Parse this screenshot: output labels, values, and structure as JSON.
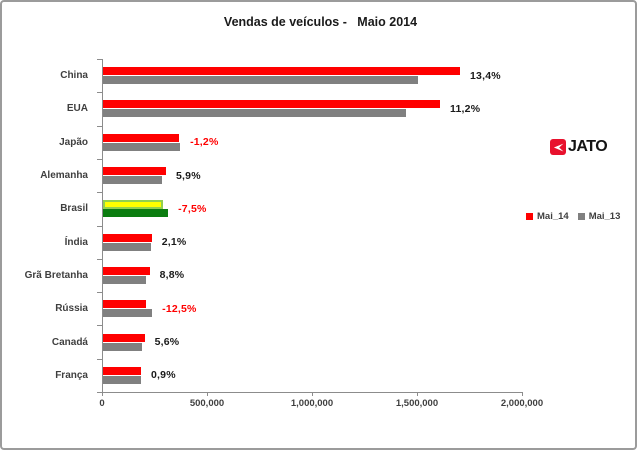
{
  "title": "Vendas de veículos -   Maio 2014",
  "chart_data": {
    "type": "bar",
    "orientation": "horizontal",
    "title": "Vendas de veículos -   Maio 2014",
    "categories": [
      "China",
      "EUA",
      "Japão",
      "Alemanha",
      "Brasil",
      "Índia",
      "Grã Bretanha",
      "Rússia",
      "Canadá",
      "França"
    ],
    "series": [
      {
        "name": "Mai_14",
        "color": "#ff0000",
        "values": [
          1700000,
          1605000,
          363000,
          300000,
          287000,
          232000,
          222000,
          205000,
          198000,
          181000
        ]
      },
      {
        "name": "Mai_13",
        "color": "#808080",
        "values": [
          1499000,
          1443000,
          367000,
          283000,
          310000,
          227000,
          204000,
          234000,
          187500,
          179400
        ]
      }
    ],
    "pct_labels": [
      "13,4%",
      "11,2%",
      "-1,2%",
      "5,9%",
      "-7,5%",
      "2,1%",
      "8,8%",
      "-12,5%",
      "5,6%",
      "0,9%"
    ],
    "pct_label_colors": [
      "#1a1a1a",
      "#1a1a1a",
      "#ff0000",
      "#1a1a1a",
      "#ff0000",
      "#1a1a1a",
      "#1a1a1a",
      "#ff0000",
      "#1a1a1a",
      "#1a1a1a"
    ],
    "highlight": {
      "category": "Brasil",
      "mai14_fill": "#ffff00",
      "mai14_border": "#92d050",
      "mai13_fill": "#0b7d10"
    },
    "xlim": [
      0,
      2000000
    ],
    "x_tick_values": [
      0,
      500000,
      1000000,
      1500000,
      2000000
    ],
    "x_tick_labels": [
      "0",
      "500,000",
      "1,000,000",
      "1,500,000",
      "2,000,000"
    ],
    "grid": false,
    "legend_position": "right",
    "legend": {
      "items": [
        {
          "label": "Mai_14",
          "color": "#ff0000"
        },
        {
          "label": "Mai_13",
          "color": "#808080"
        }
      ]
    }
  },
  "logo": {
    "text": "JATO",
    "accent_color": "#e8112d"
  },
  "colors": {
    "axis": "#8c8c8c",
    "text": "#3f3f3f",
    "negative": "#ff0000",
    "positive_label": "#1a1a1a"
  }
}
